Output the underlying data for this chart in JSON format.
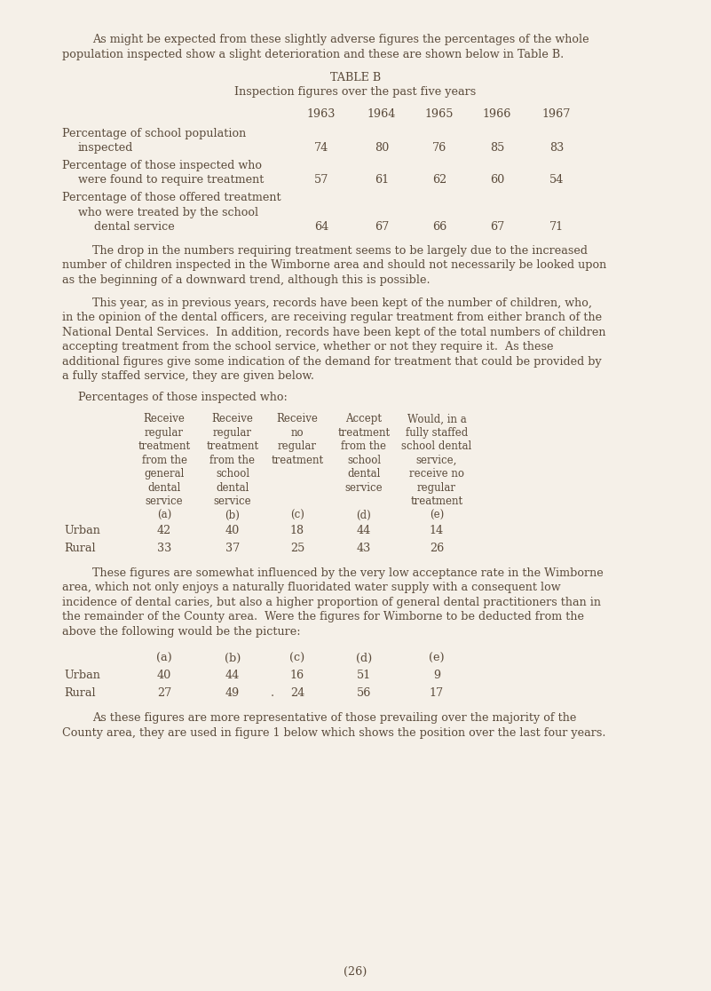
{
  "bg_color": "#f5f0e8",
  "text_color": "#5a4a3a",
  "page_width": 8.01,
  "page_height": 11.16,
  "font_family": "DejaVu Serif",
  "body_fontsize": 9.2,
  "small_fontsize": 8.5,
  "para1_line1": "As might be expected from these slightly adverse figures the percentages of the whole",
  "para1_line2": "population inspected show a slight deterioration and these are shown below in Table B.",
  "table_b_title": "TABLE B",
  "table_b_subtitle": "Inspection figures over the past five years",
  "table_b_years": [
    "1963",
    "1964",
    "1965",
    "1966",
    "1967"
  ],
  "table_b_row1_labels": [
    "Percentage of school population",
    "   inspected"
  ],
  "table_b_row1_values": [
    "74",
    "80",
    "76",
    "85",
    "83"
  ],
  "table_b_row2_labels": [
    "Percentage of those inspected who",
    "   were found to require treatment"
  ],
  "table_b_row2_values": [
    "57",
    "61",
    "62",
    "60",
    "54"
  ],
  "table_b_row3_labels": [
    "Percentage of those offered treatment",
    "   who were treated by the school",
    "      dental service"
  ],
  "table_b_row3_values": [
    "64",
    "67",
    "66",
    "67",
    "71"
  ],
  "para2_lines": [
    "The drop in the numbers requiring treatment seems to be largely due to the increased",
    "number of children inspected in the Wimborne area and should not necessarily be looked upon",
    "as the beginning of a downward trend, although this is possible."
  ],
  "para3_lines": [
    "This year, as in previous years, records have been kept of the number of children, who,",
    "in the opinion of the dental officers, are receiving regular treatment from either branch of the",
    "National Dental Services.  In addition, records have been kept of the total numbers of children",
    "accepting treatment from the school service, whether or not they require it.  As these",
    "additional figures give some indication of the demand for treatment that could be provided by",
    "a fully staffed service, they are given below."
  ],
  "percentages_label": "Percentages of those inspected who:",
  "col_headers": [
    [
      "Receive",
      "regular",
      "treatment",
      "from the",
      "general",
      "dental",
      "service",
      "(a)"
    ],
    [
      "Receive",
      "regular",
      "treatment",
      "from the",
      "school",
      "dental",
      "service",
      "(b)"
    ],
    [
      "Receive",
      "no",
      "regular",
      "treatment",
      "",
      "",
      "",
      "(c)"
    ],
    [
      "Accept",
      "treatment",
      "from the",
      "school",
      "dental",
      "service",
      "",
      "(d)"
    ],
    [
      "Would, in a",
      "fully staffed",
      "school dental",
      "service,",
      "receive no",
      "regular",
      "treatment",
      "(e)"
    ]
  ],
  "table2_urban": [
    "42",
    "40",
    "18",
    "44",
    "14"
  ],
  "table2_rural": [
    "33",
    "37",
    "25",
    "43",
    "26"
  ],
  "para4_lines": [
    "These figures are somewhat influenced by the very low acceptance rate in the Wimborne",
    "area, which not only enjoys a naturally fluoridated water supply with a consequent low",
    "incidence of dental caries, but also a higher proportion of general dental practitioners than in",
    "the remainder of the County area.  Were the figures for Wimborne to be deducted from the",
    "above the following would be the picture:"
  ],
  "table3_col_labels": [
    "(a)",
    "(b)",
    "(c)",
    "(d)",
    "(e)"
  ],
  "table3_urban": [
    "40",
    "44",
    "16",
    "51",
    "9"
  ],
  "table3_rural": [
    "27",
    "49",
    "24",
    "56",
    "17"
  ],
  "para5_lines": [
    "As these figures are more representative of those prevailing over the majority of the",
    "County area, they are used in figure 1 below which shows the position over the last four years."
  ],
  "page_number": "(26)"
}
